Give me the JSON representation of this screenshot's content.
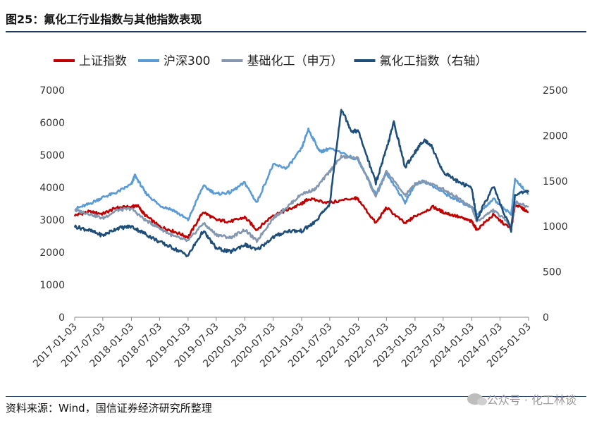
{
  "figure": {
    "title": "图25：氟化工行业指数与其他指数表现",
    "source": "资料来源：Wind，国信证券经济研究所整理",
    "watermark": "公众号 · 化工林谈"
  },
  "chart_data": {
    "type": "line",
    "title": "",
    "xlabel": "",
    "ylabel": "",
    "x_ticks": [
      "2017-01-03",
      "2017-07-03",
      "2018-01-03",
      "2018-07-03",
      "2019-01-03",
      "2019-07-03",
      "2020-01-03",
      "2020-07-03",
      "2021-01-03",
      "2021-07-03",
      "2022-01-03",
      "2022-07-03",
      "2023-01-03",
      "2023-07-03",
      "2024-01-03",
      "2024-07-03",
      "2025-01-03"
    ],
    "y_left": {
      "range": [
        0,
        7000
      ],
      "ticks": [
        0,
        1000,
        2000,
        3000,
        4000,
        5000,
        6000,
        7000
      ]
    },
    "y_right": {
      "range": [
        0,
        2500
      ],
      "ticks": [
        0,
        500,
        1000,
        1500,
        2000,
        2500
      ],
      "label": "右轴"
    },
    "legend_position": "top",
    "grid": false,
    "series": [
      {
        "name": "上证指数",
        "axis": "left",
        "color": "#c00000",
        "points": [
          [
            "2017-01-03",
            3140
          ],
          [
            "2017-04-01",
            3250
          ],
          [
            "2017-07-03",
            3190
          ],
          [
            "2017-10-01",
            3380
          ],
          [
            "2018-01-03",
            3400
          ],
          [
            "2018-02-10",
            3450
          ],
          [
            "2018-04-01",
            3150
          ],
          [
            "2018-07-03",
            2800
          ],
          [
            "2018-10-01",
            2650
          ],
          [
            "2019-01-03",
            2470
          ],
          [
            "2019-04-10",
            3250
          ],
          [
            "2019-07-03",
            3000
          ],
          [
            "2019-10-01",
            2950
          ],
          [
            "2020-01-03",
            3080
          ],
          [
            "2020-03-20",
            2700
          ],
          [
            "2020-07-03",
            3150
          ],
          [
            "2020-10-01",
            3300
          ],
          [
            "2021-01-03",
            3500
          ],
          [
            "2021-02-15",
            3650
          ],
          [
            "2021-07-03",
            3530
          ],
          [
            "2021-12-10",
            3680
          ],
          [
            "2022-01-03",
            3630
          ],
          [
            "2022-04-26",
            2900
          ],
          [
            "2022-07-03",
            3380
          ],
          [
            "2022-10-31",
            2890
          ],
          [
            "2023-01-03",
            3120
          ],
          [
            "2023-05-01",
            3400
          ],
          [
            "2023-07-03",
            3240
          ],
          [
            "2023-10-01",
            3110
          ],
          [
            "2024-01-03",
            2950
          ],
          [
            "2024-02-05",
            2700
          ],
          [
            "2024-05-20",
            3150
          ],
          [
            "2024-09-13",
            2710
          ],
          [
            "2024-10-08",
            3490
          ],
          [
            "2025-01-03",
            3240
          ]
        ]
      },
      {
        "name": "沪深300",
        "axis": "left",
        "color": "#5b9bd5",
        "points": [
          [
            "2017-01-03",
            3340
          ],
          [
            "2017-04-01",
            3480
          ],
          [
            "2017-07-03",
            3700
          ],
          [
            "2017-10-01",
            3850
          ],
          [
            "2018-01-03",
            4100
          ],
          [
            "2018-01-26",
            4380
          ],
          [
            "2018-04-01",
            3850
          ],
          [
            "2018-07-03",
            3450
          ],
          [
            "2018-10-01",
            3300
          ],
          [
            "2019-01-03",
            3000
          ],
          [
            "2019-04-10",
            4050
          ],
          [
            "2019-07-03",
            3800
          ],
          [
            "2019-10-01",
            3850
          ],
          [
            "2020-01-03",
            4150
          ],
          [
            "2020-03-20",
            3530
          ],
          [
            "2020-07-03",
            4700
          ],
          [
            "2020-10-01",
            4600
          ],
          [
            "2021-01-03",
            5200
          ],
          [
            "2021-02-15",
            5800
          ],
          [
            "2021-05-01",
            5100
          ],
          [
            "2021-07-03",
            5200
          ],
          [
            "2022-01-03",
            4850
          ],
          [
            "2022-04-26",
            3800
          ],
          [
            "2022-07-03",
            4450
          ],
          [
            "2022-10-31",
            3540
          ],
          [
            "2023-01-03",
            4100
          ],
          [
            "2023-03-01",
            4200
          ],
          [
            "2023-07-03",
            3850
          ],
          [
            "2023-10-01",
            3600
          ],
          [
            "2024-01-03",
            3400
          ],
          [
            "2024-02-05",
            3150
          ],
          [
            "2024-05-20",
            3650
          ],
          [
            "2024-09-13",
            3170
          ],
          [
            "2024-10-08",
            4250
          ],
          [
            "2025-01-03",
            3800
          ]
        ]
      },
      {
        "name": "基础化工（申万）",
        "axis": "left",
        "color": "#8497b0",
        "points": [
          [
            "2017-01-03",
            3300
          ],
          [
            "2017-04-01",
            3200
          ],
          [
            "2017-07-03",
            3050
          ],
          [
            "2017-10-01",
            3300
          ],
          [
            "2018-01-03",
            3350
          ],
          [
            "2018-04-01",
            3000
          ],
          [
            "2018-07-03",
            2750
          ],
          [
            "2018-10-01",
            2500
          ],
          [
            "2019-01-03",
            2350
          ],
          [
            "2019-04-10",
            2900
          ],
          [
            "2019-07-03",
            2550
          ],
          [
            "2019-10-01",
            2450
          ],
          [
            "2020-01-03",
            2700
          ],
          [
            "2020-03-20",
            2350
          ],
          [
            "2020-07-03",
            3050
          ],
          [
            "2020-10-01",
            3400
          ],
          [
            "2021-01-03",
            3800
          ],
          [
            "2021-04-01",
            3950
          ],
          [
            "2021-07-03",
            4500
          ],
          [
            "2021-09-15",
            4950
          ],
          [
            "2022-01-03",
            4900
          ],
          [
            "2022-04-26",
            3700
          ],
          [
            "2022-07-03",
            4500
          ],
          [
            "2022-10-31",
            3750
          ],
          [
            "2023-01-03",
            4100
          ],
          [
            "2023-03-01",
            4200
          ],
          [
            "2023-07-03",
            3950
          ],
          [
            "2023-10-01",
            3700
          ],
          [
            "2024-01-03",
            3400
          ],
          [
            "2024-02-05",
            2950
          ],
          [
            "2024-05-20",
            3300
          ],
          [
            "2024-09-13",
            2850
          ],
          [
            "2024-10-08",
            3550
          ],
          [
            "2025-01-03",
            3400
          ]
        ]
      },
      {
        "name": "氟化工指数",
        "axis": "right",
        "color": "#1f4e79",
        "points": [
          [
            "2017-01-03",
            1000
          ],
          [
            "2017-04-01",
            960
          ],
          [
            "2017-07-03",
            900
          ],
          [
            "2017-10-01",
            980
          ],
          [
            "2018-01-03",
            1000
          ],
          [
            "2018-04-01",
            920
          ],
          [
            "2018-07-03",
            830
          ],
          [
            "2018-10-01",
            760
          ],
          [
            "2019-01-03",
            680
          ],
          [
            "2019-04-10",
            950
          ],
          [
            "2019-07-03",
            760
          ],
          [
            "2019-10-01",
            720
          ],
          [
            "2020-01-03",
            800
          ],
          [
            "2020-03-20",
            740
          ],
          [
            "2020-07-03",
            880
          ],
          [
            "2020-10-01",
            950
          ],
          [
            "2021-01-03",
            950
          ],
          [
            "2021-04-01",
            1050
          ],
          [
            "2021-07-03",
            1250
          ],
          [
            "2021-09-15",
            2300
          ],
          [
            "2021-11-20",
            2050
          ],
          [
            "2022-01-03",
            2050
          ],
          [
            "2022-04-26",
            1480
          ],
          [
            "2022-07-03",
            1850
          ],
          [
            "2022-08-20",
            2150
          ],
          [
            "2022-10-31",
            1650
          ],
          [
            "2023-01-03",
            1820
          ],
          [
            "2023-03-01",
            1950
          ],
          [
            "2023-04-15",
            1900
          ],
          [
            "2023-07-03",
            1600
          ],
          [
            "2023-10-01",
            1500
          ],
          [
            "2024-01-03",
            1420
          ],
          [
            "2024-02-05",
            1080
          ],
          [
            "2024-05-20",
            1440
          ],
          [
            "2024-09-13",
            960
          ],
          [
            "2024-10-08",
            1350
          ],
          [
            "2025-01-03",
            1380
          ]
        ]
      }
    ]
  }
}
